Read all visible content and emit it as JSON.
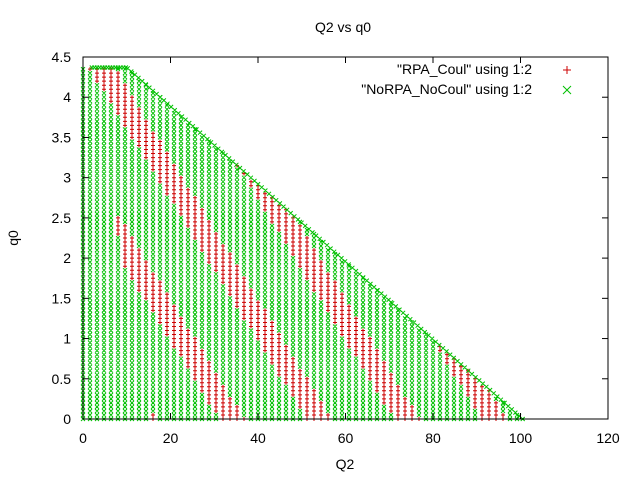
{
  "chart_data": {
    "type": "scatter",
    "title": "Q2 vs q0",
    "xlabel": "Q2",
    "ylabel": "q0",
    "xlim": [
      0,
      120
    ],
    "ylim": [
      0,
      4.5
    ],
    "xticks": [
      0,
      20,
      40,
      60,
      80,
      100,
      120
    ],
    "yticks": [
      0,
      0.5,
      1,
      1.5,
      2,
      2.5,
      3,
      3.5,
      4,
      4.5
    ],
    "grid": false,
    "legend_position": "top-right",
    "series": [
      {
        "name": "\"RPA_Coul\" using 1:2",
        "marker": "+",
        "color": "#cc0000",
        "region": {
          "description_points": [
            [
              0,
              0
            ],
            [
              0,
              4.37
            ],
            [
              10,
              4.37
            ],
            [
              100.5,
              0
            ]
          ]
        }
      },
      {
        "name": "\"NoRPA_NoCoul\" using 1:2",
        "marker": "x",
        "color": "#00c000",
        "region": {
          "description_points": [
            [
              0,
              0
            ],
            [
              0,
              4.37
            ],
            [
              10,
              4.37
            ],
            [
              100.5,
              0
            ]
          ]
        }
      }
    ]
  }
}
